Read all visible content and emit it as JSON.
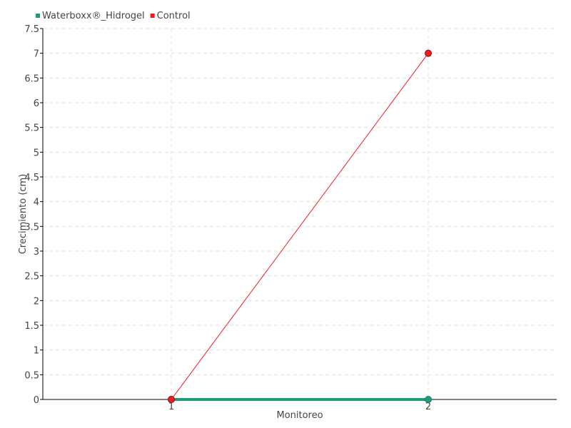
{
  "chart_data": {
    "type": "line",
    "title": "",
    "xlabel": "Monitoreo",
    "ylabel": "Crecimiento (cm)",
    "categories": [
      "1",
      "2"
    ],
    "x": [
      1,
      2
    ],
    "xlim": [
      0.5,
      2.5
    ],
    "ylim": [
      0,
      7.5
    ],
    "yticks": [
      "0",
      "0.5",
      "1",
      "1.5",
      "2",
      "2.5",
      "3",
      "3.5",
      "4",
      "4.5",
      "5",
      "5.5",
      "6",
      "6.5",
      "7",
      "7.5"
    ],
    "grid": true,
    "legend_position": "top-left",
    "series": [
      {
        "name": "Waterboxx®_Hidrogel",
        "values": [
          0,
          0
        ],
        "color": "#1f9a7c"
      },
      {
        "name": "Control",
        "values": [
          0,
          7
        ],
        "color": "#ee1c25"
      }
    ]
  }
}
